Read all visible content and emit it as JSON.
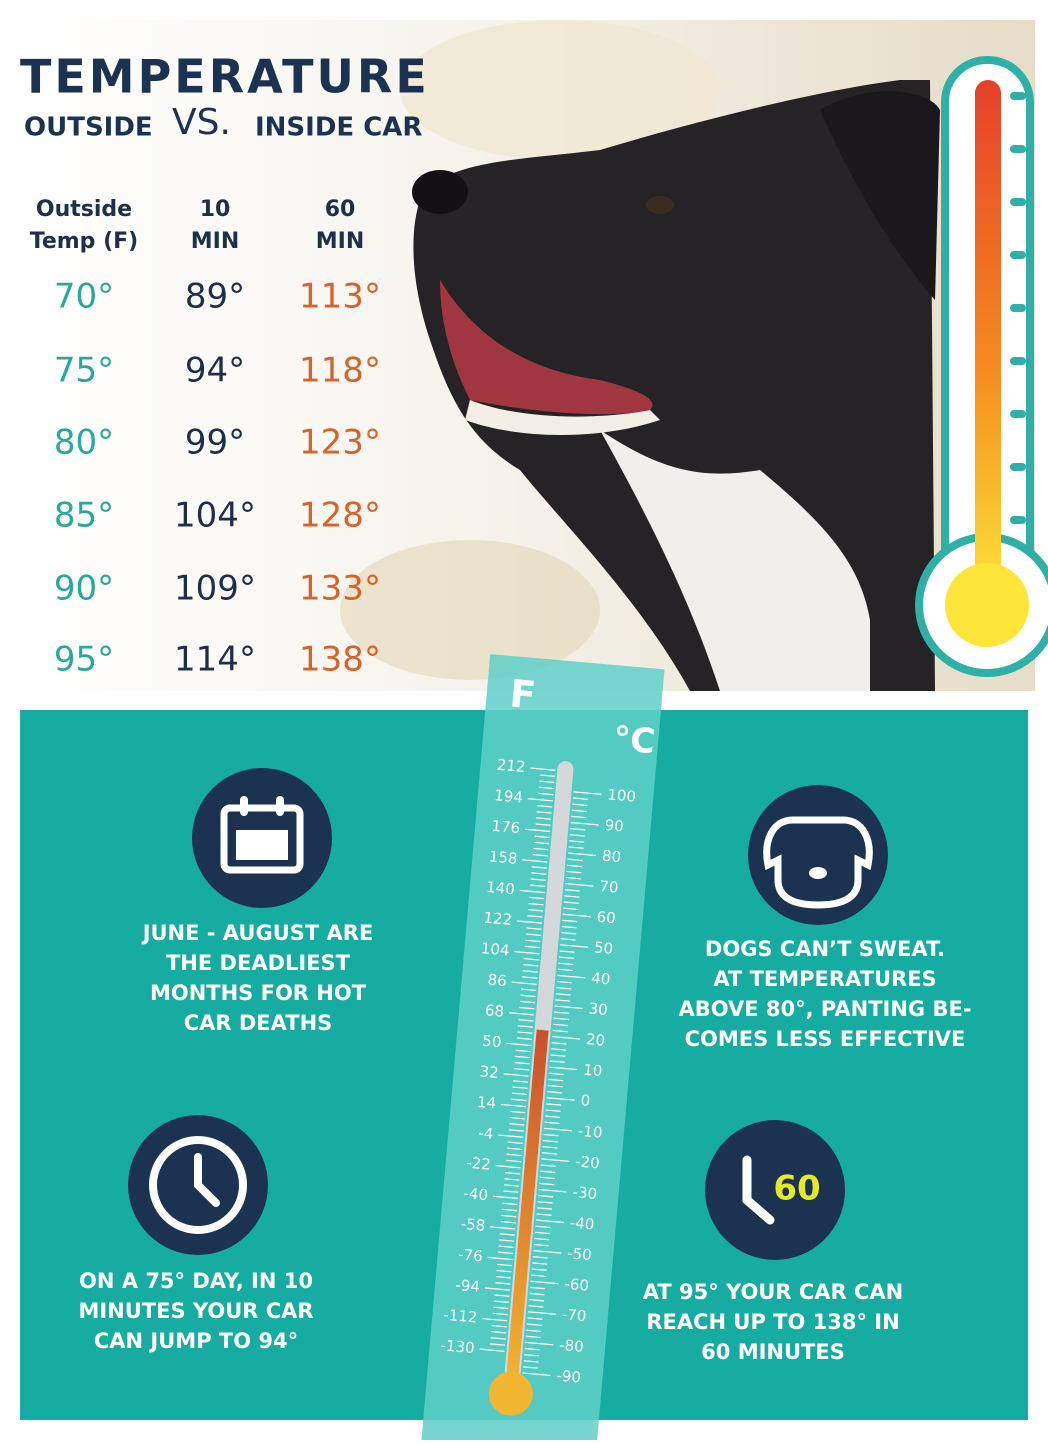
{
  "header": {
    "title": "TEMPERATURE",
    "subtitle_left": "OUTSIDE",
    "subtitle_vs": "VS.",
    "subtitle_right": "INSIDE CAR"
  },
  "table": {
    "headers": [
      [
        "Outside",
        "Temp (F)"
      ],
      [
        "10",
        "MIN"
      ],
      [
        "60",
        "MIN"
      ]
    ],
    "rows": [
      [
        "70°",
        "89°",
        "113°"
      ],
      [
        "75°",
        "94°",
        "118°"
      ],
      [
        "80°",
        "99°",
        "123°"
      ],
      [
        "85°",
        "104°",
        "128°"
      ],
      [
        "90°",
        "109°",
        "133°"
      ],
      [
        "95°",
        "114°",
        "138°"
      ]
    ]
  },
  "thermometer": {
    "f_label": "F",
    "c_label": "°C",
    "f_ticks": [
      212,
      194,
      176,
      158,
      140,
      122,
      104,
      86,
      68,
      50,
      32,
      14,
      -4,
      -22,
      -40,
      -58,
      -76,
      -94,
      -112,
      -130
    ],
    "c_ticks": [
      100,
      90,
      80,
      70,
      60,
      50,
      40,
      30,
      20,
      10,
      0,
      -10,
      -20,
      -30,
      -40,
      -50,
      -60,
      -70,
      -80,
      -90
    ]
  },
  "facts": [
    {
      "lines": [
        "JUNE - AUGUST ARE",
        "THE DEADLIEST",
        "MONTHS FOR HOT",
        "CAR DEATHS"
      ]
    },
    {
      "lines": [
        "DOGS CAN’T SWEAT.",
        "AT TEMPERATURES",
        "ABOVE 80°, PANTING BE-",
        "COMES LESS EFFECTIVE"
      ]
    },
    {
      "lines": [
        "ON A 75° DAY, IN 10",
        "MINUTES YOUR CAR",
        "CAN JUMP TO 94°"
      ]
    },
    {
      "lines": [
        "AT 95° YOUR CAR CAN",
        "REACH UP TO 138° IN",
        "60 MINUTES"
      ],
      "icon_text": "60"
    }
  ]
}
